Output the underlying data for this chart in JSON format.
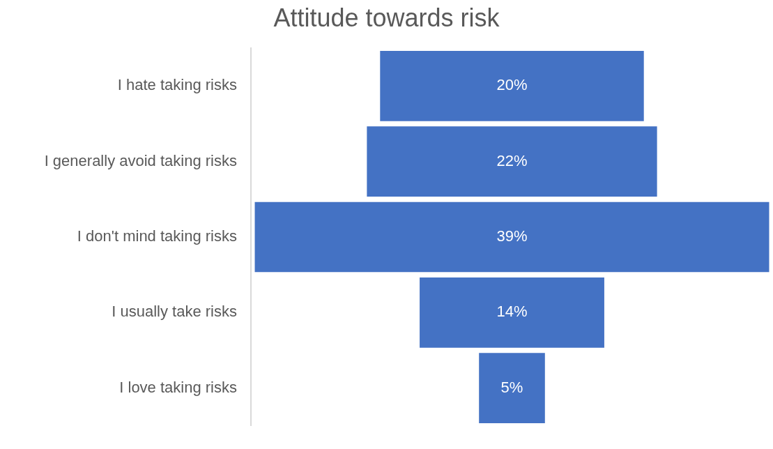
{
  "chart_data": {
    "type": "other",
    "title": "Attitude towards risk",
    "categories": [
      "I hate taking risks",
      "I generally avoid taking risks",
      "I don't mind taking risks",
      "I usually take risks",
      "I love taking risks"
    ],
    "values": [
      20,
      22,
      39,
      14,
      5
    ],
    "color": "#4472c4",
    "value_labels": [
      "20%",
      "22%",
      "39%",
      "14%",
      "5%"
    ]
  }
}
